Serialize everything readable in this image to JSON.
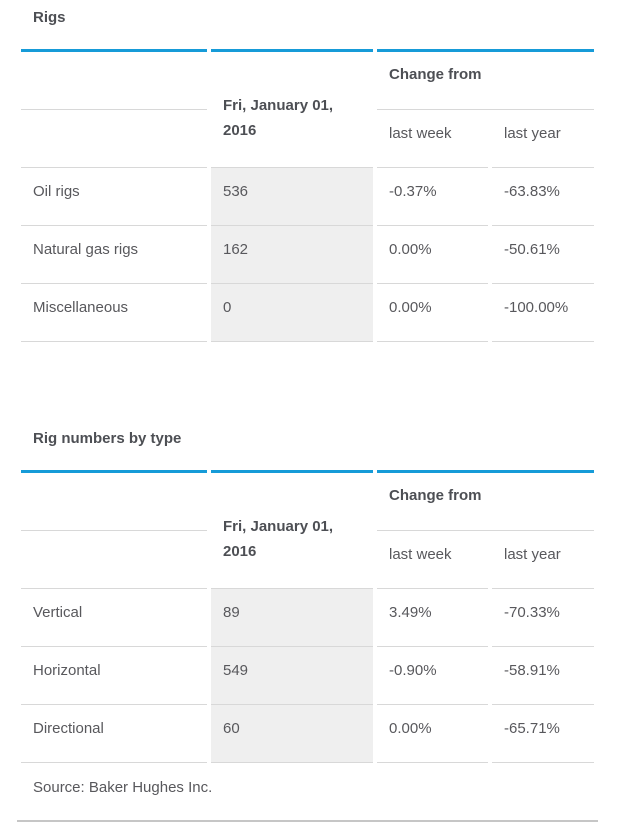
{
  "colors": {
    "accent_blue": "#169bd8",
    "value_cell_background": "#efefef",
    "divider_gray": "#d8d8d8"
  },
  "sections": [
    {
      "title": "Rigs",
      "date_header": "Fri, January 01, 2016",
      "change_from_label": "Change from",
      "sub_headers": [
        "last week",
        "last year"
      ],
      "rows": [
        {
          "label": "Oil rigs",
          "value": "536",
          "last_week": "-0.37%",
          "last_year": "-63.83%"
        },
        {
          "label": "Natural gas rigs",
          "value": "162",
          "last_week": "0.00%",
          "last_year": "-50.61%"
        },
        {
          "label": "Miscellaneous",
          "value": "0",
          "last_week": "0.00%",
          "last_year": "-100.00%"
        }
      ]
    },
    {
      "title": "Rig numbers by type",
      "date_header": "Fri, January 01, 2016",
      "change_from_label": "Change from",
      "sub_headers": [
        "last week",
        "last year"
      ],
      "rows": [
        {
          "label": "Vertical",
          "value": "89",
          "last_week": "3.49%",
          "last_year": "-70.33%"
        },
        {
          "label": "Horizontal",
          "value": "549",
          "last_week": "-0.90%",
          "last_year": "-58.91%"
        },
        {
          "label": "Directional",
          "value": "60",
          "last_week": "0.00%",
          "last_year": "-65.71%"
        }
      ]
    }
  ],
  "source": "Source: Baker Hughes Inc."
}
